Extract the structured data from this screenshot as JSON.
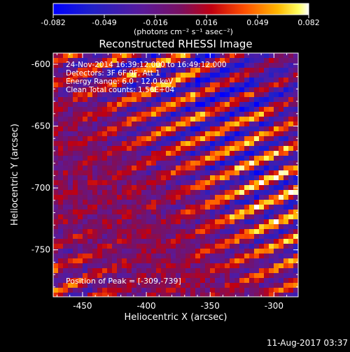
{
  "colorbar": {
    "ticks": [
      "-0.082",
      "-0.049",
      "-0.016",
      "0.016",
      "0.049",
      "0.082"
    ],
    "unit_label": "(photons cm⁻² s⁻¹ asec⁻²)",
    "range": [
      -0.082,
      0.082
    ]
  },
  "chart_data": {
    "type": "heatmap",
    "title": "Reconstructed RHESSI Image",
    "xlabel": "Heliocentric X (arcsec)",
    "ylabel": "Heliocentric Y (arcsec)",
    "xlim": [
      -473,
      -281
    ],
    "ylim": [
      -788,
      -591
    ],
    "x_ticks": [
      "-450",
      "-400",
      "-350",
      "-300"
    ],
    "y_ticks": [
      "-600",
      "-650",
      "-700",
      "-750"
    ],
    "x_tick_values": [
      -450,
      -400,
      -350,
      -300
    ],
    "y_tick_values": [
      -600,
      -650,
      -700,
      -750
    ],
    "annotations": [
      "24-Nov-2014 16:39:12.000 to 16:49:12.000",
      "Detectors: 3F 6F 9F, Att 1",
      "Energy Range: 6.0 - 12.0 keV",
      "Clean    Total counts: 1.56E+04"
    ],
    "peak_label": "Position of Peak = [-309,-739]",
    "peak": [
      -309,
      -739
    ],
    "colormap": "RHESSI red-temperature (blue-purple-red-orange-yellow-white)"
  },
  "footer": {
    "date": "11-Aug-2017 03:37"
  }
}
